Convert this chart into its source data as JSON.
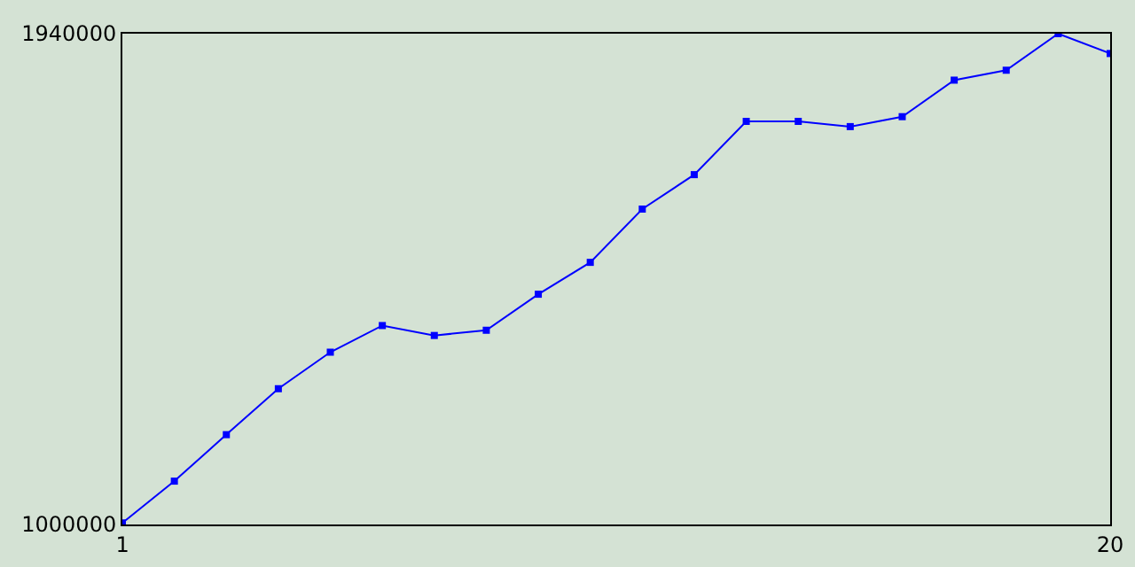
{
  "chart_data": {
    "type": "line",
    "x": [
      1,
      2,
      3,
      4,
      5,
      6,
      7,
      8,
      9,
      10,
      11,
      12,
      13,
      14,
      15,
      16,
      17,
      18,
      19,
      20
    ],
    "series": [
      {
        "color": "#0000ff",
        "values": [
          1003000,
          1083000,
          1172000,
          1260000,
          1330000,
          1381000,
          1362000,
          1372000,
          1441000,
          1502000,
          1604000,
          1670000,
          1772000,
          1772000,
          1762000,
          1781000,
          1851000,
          1870000,
          1940000,
          1902000
        ]
      }
    ],
    "xlim": [
      1,
      20
    ],
    "xticks": [
      1,
      20
    ],
    "ylim": [
      1000000,
      1940000
    ],
    "yticks": [
      1000000,
      1940000
    ],
    "legend": false,
    "marker": "square",
    "line_style": "solid"
  }
}
